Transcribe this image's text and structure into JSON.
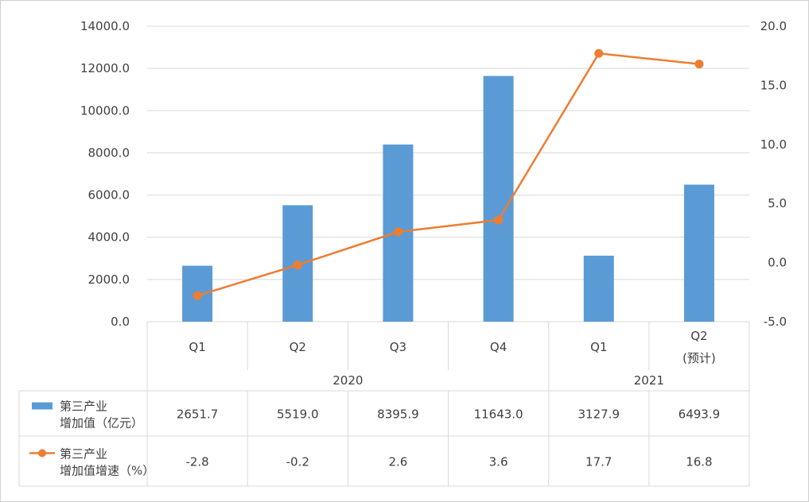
{
  "chart_data": {
    "type": "bar",
    "categories": [
      {
        "label": "Q1",
        "sublabel": ""
      },
      {
        "label": "Q2",
        "sublabel": ""
      },
      {
        "label": "Q3",
        "sublabel": ""
      },
      {
        "label": "Q4",
        "sublabel": ""
      },
      {
        "label": "Q1",
        "sublabel": ""
      },
      {
        "label": "Q2",
        "sublabel": "(预计)"
      }
    ],
    "groups": [
      {
        "label": "2020",
        "span": 4
      },
      {
        "label": "2021",
        "span": 2
      }
    ],
    "series": [
      {
        "name_line1": "第三产业",
        "name_line2": "增加值（亿元）",
        "type": "bar",
        "axis": "left",
        "color": "#5b9bd5",
        "values": [
          2651.7,
          5519.0,
          8395.9,
          11643.0,
          3127.9,
          6493.9
        ],
        "value_labels": [
          "2651.7",
          "5519.0",
          "8395.9",
          "11643.0",
          "3127.9",
          "6493.9"
        ]
      },
      {
        "name_line1": "第三产业",
        "name_line2": "增加值增速（%）",
        "type": "line",
        "axis": "right",
        "color": "#ed7d31",
        "values": [
          -2.8,
          -0.2,
          2.6,
          3.6,
          17.7,
          16.8
        ],
        "value_labels": [
          "-2.8",
          "-0.2",
          "2.6",
          "3.6",
          "17.7",
          "16.8"
        ]
      }
    ],
    "y_left": {
      "ylim": [
        0,
        14000
      ],
      "ticks": [
        "0.0",
        "2000.0",
        "4000.0",
        "6000.0",
        "8000.0",
        "10000.0",
        "12000.0",
        "14000.0"
      ]
    },
    "y_right": {
      "ylim": [
        -5,
        20
      ],
      "ticks": [
        "-5.0",
        "0.0",
        "5.0",
        "10.0",
        "15.0",
        "20.0"
      ]
    },
    "grid": true,
    "legend": "data-table"
  }
}
